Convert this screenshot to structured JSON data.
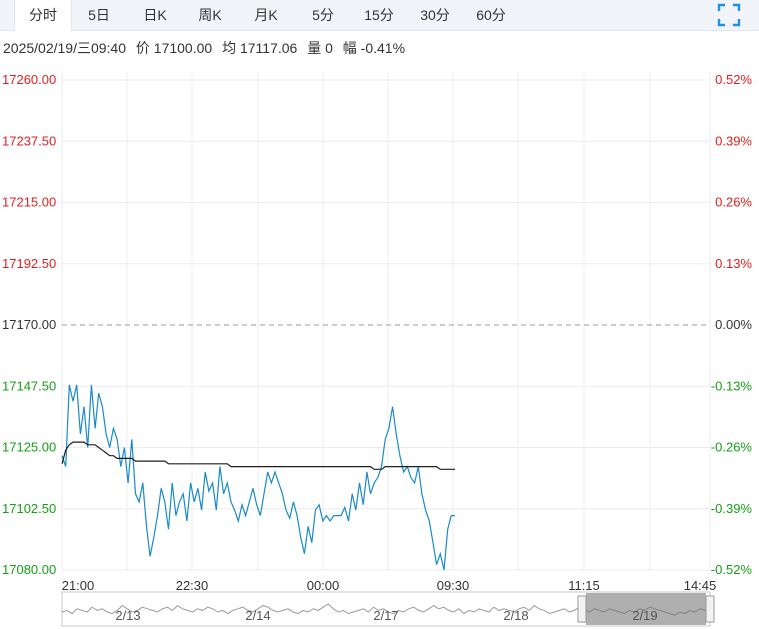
{
  "tabs": [
    {
      "label": "分时",
      "active": true
    },
    {
      "label": "5日"
    },
    {
      "label": "日K"
    },
    {
      "label": "周K"
    },
    {
      "label": "月K"
    },
    {
      "label": "5分"
    },
    {
      "label": "15分"
    },
    {
      "label": "30分"
    },
    {
      "label": "60分"
    }
  ],
  "fullscreen_icon": "fullscreen-icon",
  "info": {
    "datetime": "2025/02/19/三09:40",
    "price": "价 17100.00",
    "avg": "均 17117.06",
    "volume": "量 0",
    "change": "幅 -0.41%"
  },
  "colors": {
    "up": "#e02020",
    "down": "#15a015",
    "neutral": "#333333",
    "price_line": "#1a8ac8",
    "avg_line": "#1e1e1e"
  },
  "chart_data": {
    "type": "line",
    "prev_close": 17170.0,
    "y_ticks": [
      "17260.00",
      "17237.50",
      "17215.00",
      "17192.50",
      "17170.00",
      "17147.50",
      "17125.00",
      "17102.50",
      "17080.00"
    ],
    "y_pct": [
      "0.52%",
      "0.39%",
      "0.26%",
      "0.13%",
      "0.00%",
      "-0.13%",
      "-0.26%",
      "-0.39%",
      "-0.52%"
    ],
    "ylim": [
      17080,
      17260
    ],
    "x_ticks": [
      "21:00",
      "22:30",
      "00:00",
      "09:30",
      "11:15",
      "14:45"
    ],
    "navigator_labels": [
      "2/13",
      "2/14",
      "2/17",
      "2/18",
      "2/19"
    ],
    "price": [
      17122,
      17118,
      17148,
      17142,
      17148,
      17130,
      17140,
      17125,
      17148,
      17132,
      17145,
      17140,
      17130,
      17125,
      17132,
      17128,
      17118,
      17125,
      17112,
      17128,
      17108,
      17105,
      17112,
      17096,
      17085,
      17092,
      17100,
      17110,
      17105,
      17095,
      17112,
      17100,
      17105,
      17108,
      17098,
      17112,
      17105,
      17110,
      17102,
      17116,
      17109,
      17112,
      17102,
      17118,
      17108,
      17112,
      17105,
      17102,
      17098,
      17104,
      17100,
      17105,
      17110,
      17104,
      17100,
      17108,
      17116,
      17112,
      17116,
      17112,
      17108,
      17102,
      17099,
      17105,
      17100,
      17092,
      17086,
      17096,
      17090,
      17102,
      17104,
      17098,
      17100,
      17098,
      17100,
      17100,
      17100,
      17103,
      17098,
      17108,
      17102,
      17112,
      17104,
      17116,
      17108,
      17112,
      17114,
      17118,
      17128,
      17132,
      17140,
      17130,
      17122,
      17116,
      17118,
      17114,
      17112,
      17118,
      17108,
      17102,
      17098,
      17090,
      17082,
      17086,
      17080,
      17095,
      17100,
      17100
    ],
    "avg": [
      17119,
      17124,
      17126,
      17127,
      17127,
      17127,
      17127,
      17126,
      17126,
      17126,
      17125,
      17124,
      17123,
      17122,
      17122,
      17121,
      17121,
      17121,
      17121,
      17121,
      17120,
      17120,
      17120,
      17120,
      17120,
      17120,
      17120,
      17120,
      17120,
      17119,
      17119,
      17119,
      17119,
      17119,
      17119,
      17119,
      17119,
      17119,
      17119,
      17119,
      17119,
      17119,
      17119,
      17119,
      17119,
      17119,
      17118,
      17118,
      17118,
      17118,
      17118,
      17118,
      17118,
      17118,
      17118,
      17118,
      17118,
      17118,
      17118,
      17118,
      17118,
      17118,
      17118,
      17118,
      17118,
      17118,
      17118,
      17118,
      17118,
      17118,
      17118,
      17118,
      17118,
      17118,
      17118,
      17118,
      17118,
      17118,
      17118,
      17118,
      17118,
      17118,
      17118,
      17118,
      17118,
      17117,
      17117,
      17117,
      17118,
      17118,
      17118,
      17118,
      17118,
      17118,
      17118,
      17118,
      17118,
      17118,
      17118,
      17118,
      17118,
      17118,
      17118,
      17117,
      17117,
      17117,
      17117,
      17117
    ],
    "navigator_series": [
      5,
      6,
      4,
      7,
      6,
      5,
      8,
      6,
      7,
      5,
      4,
      6,
      9,
      7,
      5,
      6,
      8,
      7,
      6,
      5,
      7,
      8,
      6,
      9,
      7,
      6,
      5,
      7,
      6,
      8,
      7,
      5,
      6,
      4,
      6,
      7,
      8,
      6,
      5,
      7,
      9,
      8,
      6,
      5,
      6,
      7,
      5,
      4,
      6,
      5,
      7,
      6,
      8,
      10,
      7,
      5,
      6,
      4,
      5,
      6,
      7,
      5,
      8,
      6,
      7,
      5,
      4,
      6,
      5,
      7,
      8,
      6,
      5,
      7,
      9,
      7,
      8,
      6,
      5,
      7,
      4,
      6,
      5,
      7,
      6,
      5,
      8,
      6,
      7,
      6,
      5,
      7,
      8,
      6,
      9,
      7,
      6,
      4,
      5,
      6,
      7,
      5,
      6,
      8,
      6,
      5,
      7,
      6,
      5,
      7,
      6,
      5,
      4,
      6,
      5,
      7,
      6,
      8,
      7,
      6,
      5,
      4,
      3,
      5,
      4,
      6,
      5,
      7,
      6,
      5
    ]
  }
}
